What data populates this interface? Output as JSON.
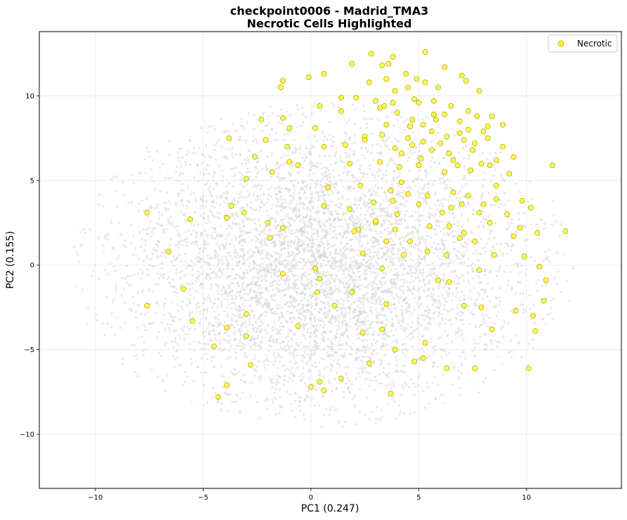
{
  "chart_data": {
    "type": "scatter",
    "title": "checkpoint0006 - Madrid_TMA3",
    "subtitle": "Necrotic Cells Highlighted",
    "xlabel": "PC1 (0.247)",
    "ylabel": "PC2 (0.155)",
    "xlim": [
      -12.6,
      14.4
    ],
    "ylim": [
      -13.2,
      13.8
    ],
    "x_ticks": [
      -10,
      -5,
      0,
      5,
      10
    ],
    "y_ticks": [
      -10,
      -5,
      0,
      5,
      10
    ],
    "x_tick_labels": [
      "−10",
      "−5",
      "0",
      "5",
      "10"
    ],
    "y_tick_labels": [
      "−10",
      "−5",
      "0",
      "5",
      "10"
    ],
    "grid": true,
    "legend": {
      "position": "top-right",
      "entries": [
        "Necrotic"
      ]
    },
    "colors": {
      "background_cells": "#d3d3d3",
      "necrotic_fill": "#ffff33",
      "necrotic_edge": "#a89a00"
    },
    "series": [
      {
        "name": "Necrotic",
        "points": [
          [
            2.8,
            12.5
          ],
          [
            3.8,
            12.3
          ],
          [
            5.3,
            12.6
          ],
          [
            1.9,
            11.9
          ],
          [
            3.3,
            11.8
          ],
          [
            3.6,
            11.9
          ],
          [
            6.2,
            11.7
          ],
          [
            7.0,
            11.2
          ],
          [
            0.6,
            11.3
          ],
          [
            -0.1,
            11.1
          ],
          [
            -1.3,
            10.9
          ],
          [
            -1.4,
            10.5
          ],
          [
            2.7,
            10.8
          ],
          [
            3.5,
            11.0
          ],
          [
            4.9,
            11.0
          ],
          [
            5.3,
            10.8
          ],
          [
            4.5,
            10.5
          ],
          [
            5.9,
            10.5
          ],
          [
            7.2,
            10.9
          ],
          [
            7.8,
            10.3
          ],
          [
            1.4,
            9.9
          ],
          [
            2.1,
            9.9
          ],
          [
            3.9,
            10.3
          ],
          [
            4.8,
            9.8
          ],
          [
            3.4,
            9.4
          ],
          [
            3.8,
            9.6
          ],
          [
            5.0,
            9.6
          ],
          [
            6.5,
            9.4
          ],
          [
            0.4,
            9.4
          ],
          [
            1.4,
            9.1
          ],
          [
            3.2,
            9.3
          ],
          [
            4.0,
            9.0
          ],
          [
            4.7,
            8.6
          ],
          [
            5.7,
            8.9
          ],
          [
            6.2,
            8.9
          ],
          [
            7.3,
            9.1
          ],
          [
            7.7,
            8.8
          ],
          [
            8.4,
            8.8
          ],
          [
            -2.3,
            8.6
          ],
          [
            -1.3,
            8.7
          ],
          [
            3.5,
            8.3
          ],
          [
            4.6,
            8.2
          ],
          [
            5.2,
            8.3
          ],
          [
            5.8,
            8.6
          ],
          [
            6.9,
            8.5
          ],
          [
            8.2,
            8.2
          ],
          [
            8.9,
            8.3
          ],
          [
            -1.0,
            8.1
          ],
          [
            0.2,
            8.1
          ],
          [
            2.5,
            7.6
          ],
          [
            3.3,
            7.7
          ],
          [
            4.5,
            7.5
          ],
          [
            5.6,
            7.9
          ],
          [
            6.3,
            7.6
          ],
          [
            7.1,
            7.4
          ],
          [
            7.6,
            7.2
          ],
          [
            8.2,
            7.5
          ],
          [
            -3.8,
            7.5
          ],
          [
            -2.1,
            7.4
          ],
          [
            -1.1,
            7.0
          ],
          [
            0.6,
            7.0
          ],
          [
            1.6,
            7.1
          ],
          [
            2.5,
            7.4
          ],
          [
            3.9,
            6.9
          ],
          [
            4.7,
            7.1
          ],
          [
            5.6,
            6.8
          ],
          [
            6.4,
            6.6
          ],
          [
            7.5,
            6.8
          ],
          [
            8.9,
            7.0
          ],
          [
            -2.6,
            6.4
          ],
          [
            -1.8,
            5.5
          ],
          [
            -1.0,
            6.1
          ],
          [
            -0.6,
            5.9
          ],
          [
            1.8,
            6.0
          ],
          [
            3.2,
            6.1
          ],
          [
            4.1,
            5.8
          ],
          [
            5.0,
            5.9
          ],
          [
            6.2,
            5.5
          ],
          [
            7.4,
            5.6
          ],
          [
            8.3,
            5.9
          ],
          [
            9.4,
            6.4
          ],
          [
            11.2,
            5.9
          ],
          [
            -3.0,
            5.1
          ],
          [
            0.8,
            4.6
          ],
          [
            2.3,
            4.7
          ],
          [
            3.7,
            4.4
          ],
          [
            4.5,
            4.2
          ],
          [
            5.4,
            4.1
          ],
          [
            6.6,
            4.3
          ],
          [
            7.3,
            4.1
          ],
          [
            8.6,
            3.9
          ],
          [
            9.8,
            3.8
          ],
          [
            -3.7,
            3.5
          ],
          [
            0.6,
            3.5
          ],
          [
            1.8,
            3.3
          ],
          [
            2.9,
            3.7
          ],
          [
            3.8,
            3.8
          ],
          [
            5.0,
            3.6
          ],
          [
            6.5,
            3.4
          ],
          [
            7.8,
            3.1
          ],
          [
            9.1,
            3.0
          ],
          [
            10.2,
            3.4
          ],
          [
            -7.6,
            3.1
          ],
          [
            -5.6,
            2.7
          ],
          [
            -3.9,
            2.8
          ],
          [
            -3.1,
            3.1
          ],
          [
            -2.0,
            2.5
          ],
          [
            -1.3,
            2.2
          ],
          [
            2.2,
            2.1
          ],
          [
            3.0,
            2.5
          ],
          [
            3.9,
            2.1
          ],
          [
            5.5,
            2.3
          ],
          [
            6.4,
            2.3
          ],
          [
            7.1,
            1.9
          ],
          [
            8.3,
            2.5
          ],
          [
            9.7,
            2.2
          ],
          [
            10.5,
            1.9
          ],
          [
            11.8,
            2.0
          ],
          [
            -1.9,
            1.6
          ],
          [
            2.4,
            0.7
          ],
          [
            3.5,
            1.4
          ],
          [
            4.3,
            0.6
          ],
          [
            5.4,
            0.8
          ],
          [
            6.3,
            0.6
          ],
          [
            7.6,
            1.4
          ],
          [
            8.5,
            0.6
          ],
          [
            9.9,
            0.5
          ],
          [
            10.6,
            -0.1
          ],
          [
            -6.6,
            0.8
          ],
          [
            0.2,
            -0.2
          ],
          [
            0.4,
            -0.8
          ],
          [
            3.3,
            -0.2
          ],
          [
            5.9,
            -0.9
          ],
          [
            6.4,
            -1.0
          ],
          [
            7.8,
            -0.3
          ],
          [
            10.9,
            -0.9
          ],
          [
            -5.9,
            -1.4
          ],
          [
            -1.3,
            -0.5
          ],
          [
            0.3,
            -1.6
          ],
          [
            1.9,
            -1.6
          ],
          [
            3.5,
            -2.3
          ],
          [
            7.1,
            -2.4
          ],
          [
            7.9,
            -2.5
          ],
          [
            9.5,
            -2.7
          ],
          [
            10.8,
            -2.1
          ],
          [
            -7.6,
            -2.4
          ],
          [
            -5.5,
            -3.3
          ],
          [
            -3.9,
            -3.7
          ],
          [
            -3.0,
            -2.9
          ],
          [
            -0.6,
            -3.6
          ],
          [
            1.1,
            -2.4
          ],
          [
            2.4,
            -4.0
          ],
          [
            3.3,
            -3.8
          ],
          [
            5.3,
            -4.6
          ],
          [
            8.4,
            -3.8
          ],
          [
            10.3,
            -3.0
          ],
          [
            -4.5,
            -4.8
          ],
          [
            -3.0,
            -4.2
          ],
          [
            3.9,
            -5.0
          ],
          [
            4.8,
            -5.7
          ],
          [
            5.2,
            -5.5
          ],
          [
            10.4,
            -3.9
          ],
          [
            -2.8,
            -5.9
          ],
          [
            2.7,
            -5.8
          ],
          [
            6.3,
            -6.1
          ],
          [
            7.6,
            -6.1
          ],
          [
            10.1,
            -6.1
          ],
          [
            -3.9,
            -7.1
          ],
          [
            -4.3,
            -7.8
          ],
          [
            0.0,
            -7.2
          ],
          [
            0.4,
            -6.9
          ],
          [
            0.6,
            -7.4
          ],
          [
            1.4,
            -6.7
          ],
          [
            3.7,
            -7.6
          ],
          [
            4.2,
            4.9
          ],
          [
            5.1,
            6.3
          ],
          [
            6.0,
            7.2
          ],
          [
            6.8,
            5.9
          ],
          [
            7.9,
            6.0
          ],
          [
            8.6,
            4.7
          ],
          [
            9.2,
            5.4
          ],
          [
            4.0,
            3.0
          ],
          [
            2.0,
            2.0
          ],
          [
            6.1,
            3.1
          ],
          [
            7.0,
            3.6
          ],
          [
            8.0,
            3.6
          ],
          [
            9.4,
            1.7
          ],
          [
            6.9,
            1.6
          ],
          [
            4.6,
            1.4
          ],
          [
            3.0,
            2.6
          ],
          [
            6.6,
            6.2
          ],
          [
            5.2,
            7.3
          ],
          [
            4.2,
            6.6
          ],
          [
            7.3,
            8.0
          ],
          [
            8.6,
            6.2
          ],
          [
            6.9,
            7.8
          ],
          [
            8.0,
            7.9
          ],
          [
            5.7,
            9.7
          ],
          [
            4.4,
            11.3
          ],
          [
            3.0,
            9.7
          ]
        ]
      }
    ]
  }
}
